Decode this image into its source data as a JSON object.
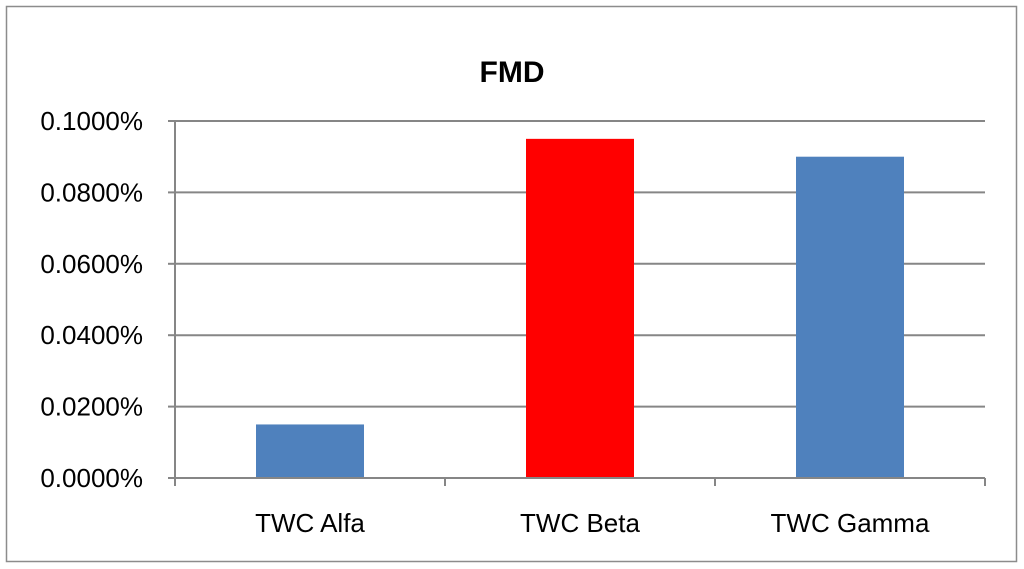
{
  "chart_data": {
    "type": "bar",
    "title": "FMD",
    "categories": [
      "TWC Alfa",
      "TWC Beta",
      "TWC Gamma"
    ],
    "values": [
      0.015,
      0.095,
      0.09
    ],
    "value_unit": "%",
    "ylim": [
      0,
      0.1
    ],
    "yticks": [
      0,
      0.02,
      0.04,
      0.06,
      0.08,
      0.1
    ],
    "ytick_labels": [
      "0.0000%",
      "0.0200%",
      "0.0400%",
      "0.0600%",
      "0.0800%",
      "0.1000%"
    ],
    "bar_colors": [
      "#4f81bd",
      "#ff0000",
      "#4f81bd"
    ],
    "grid": true,
    "legend": "none"
  }
}
